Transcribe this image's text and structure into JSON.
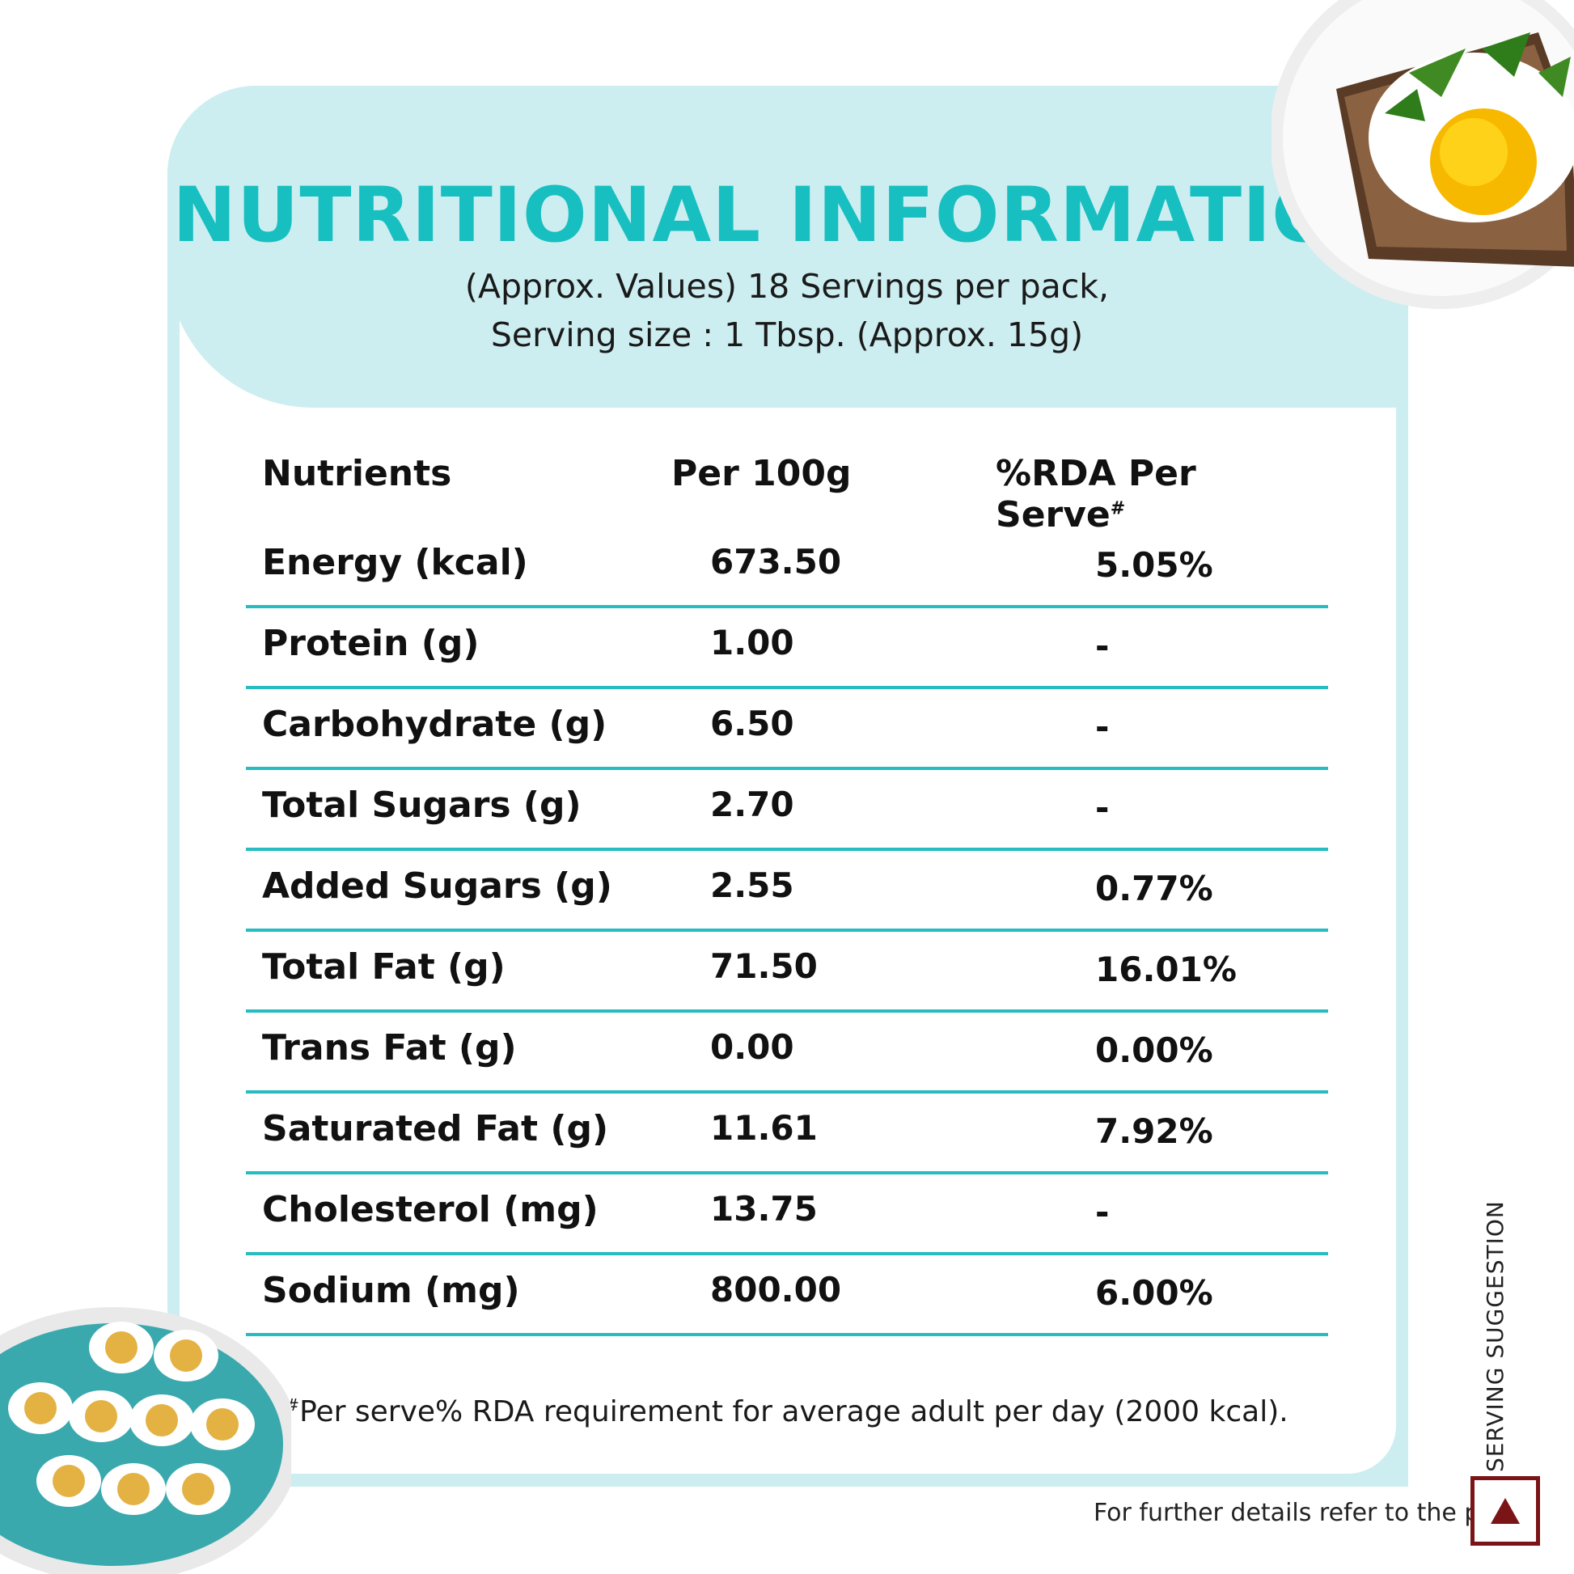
{
  "header": {
    "title": "NUTRITIONAL INFORMATION",
    "subtitle_line1": "(Approx. Values) 18 Servings per pack,",
    "subtitle_line2": "Serving size : 1 Tbsp. (Approx. 15g)"
  },
  "table": {
    "col_nutrients": "Nutrients",
    "col_per100": "Per 100g",
    "col_rda": "%RDA Per Serve",
    "col_rda_mark": "#",
    "rows": [
      {
        "name": "Energy (kcal)",
        "per100": "673.50",
        "rda": "5.05%"
      },
      {
        "name": "Protein (g)",
        "per100": "1.00",
        "rda": "-"
      },
      {
        "name": "Carbohydrate (g)",
        "per100": "6.50",
        "rda": "-"
      },
      {
        "name": "Total Sugars (g)",
        "per100": "2.70",
        "rda": "-"
      },
      {
        "name": "Added Sugars (g)",
        "per100": "2.55",
        "rda": "0.77%"
      },
      {
        "name": "Total Fat (g)",
        "per100": "71.50",
        "rda": "16.01%"
      },
      {
        "name": "Trans Fat (g)",
        "per100": "0.00",
        "rda": "0.00%"
      },
      {
        "name": "Saturated Fat (g)",
        "per100": "11.61",
        "rda": "7.92%"
      },
      {
        "name": "Cholesterol (mg)",
        "per100": "13.75",
        "rda": "-"
      },
      {
        "name": "Sodium (mg)",
        "per100": "800.00",
        "rda": "6.00%"
      }
    ]
  },
  "footnote": {
    "mark": "#",
    "text": "Per serve% RDA requirement for average adult per day (2000 kcal)."
  },
  "side_label": "SERVING SUGGESTION",
  "bottom_note": "For further details refer to the pack.",
  "colors": {
    "accent": "#18bfc0",
    "panel": "#cdeef1",
    "rule": "#27bcc0",
    "veg_mark": "#7a1416"
  }
}
